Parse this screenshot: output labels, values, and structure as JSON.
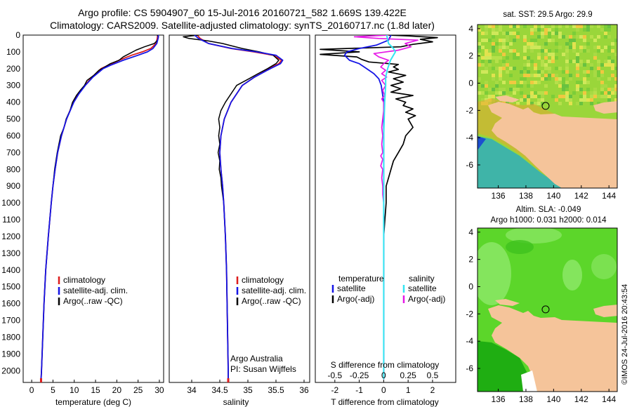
{
  "title": {
    "line1": "Argo profile: CS 5904907_60 15-Jul-2016 20160721_582 1.669S 139.422E",
    "line2": "Climatology: CARS2009. Satellite-adjusted climatology: synTS_20160717.nc (1.8d later)"
  },
  "colors": {
    "climatology": "#dd1c1c",
    "satellite": "#1515e6",
    "argo": "#000000",
    "sal_satellite": "#33e6f2",
    "sal_argo": "#e619e6",
    "land": "#f5c49a",
    "sst_main": "#9ad63a",
    "sla_main": "#5cd62a"
  },
  "depth_axis": {
    "ylim": [
      0,
      2070
    ],
    "ticks": [
      0,
      100,
      200,
      300,
      400,
      500,
      600,
      700,
      800,
      900,
      1000,
      1100,
      1200,
      1300,
      1400,
      1500,
      1600,
      1700,
      1800,
      1900,
      2000
    ]
  },
  "chart_data": [
    {
      "type": "line",
      "id": "temperature",
      "xlabel": "temperature (deg C)",
      "ylabel": "",
      "xlim": [
        -2,
        31
      ],
      "xticks": [
        0,
        5,
        10,
        15,
        20,
        25,
        30
      ],
      "legend": {
        "placement": "bottom-left",
        "entries": [
          "climatology",
          "satellite-adj. clim.",
          "Argo(..raw -QC)"
        ]
      },
      "series": [
        {
          "name": "climatology",
          "depth": [
            0,
            20,
            50,
            80,
            100,
            120,
            150,
            180,
            200,
            250,
            300,
            350,
            400,
            500,
            600,
            700,
            800,
            900,
            1000,
            1200,
            1400,
            1600,
            1800,
            2000,
            2050
          ],
          "values": [
            29.6,
            29.5,
            29.2,
            28,
            26,
            23.5,
            20.5,
            18,
            16.3,
            14.2,
            12.5,
            11,
            9.8,
            8.2,
            7,
            6.1,
            5.5,
            5,
            4.6,
            3.9,
            3.3,
            2.9,
            2.6,
            2.3,
            2.2
          ]
        },
        {
          "name": "satellite-adj. clim.",
          "depth": [
            0,
            20,
            50,
            80,
            100,
            120,
            150,
            180,
            200,
            250,
            300,
            350,
            400,
            500,
            600,
            700,
            800,
            900,
            1000,
            1200,
            1400,
            1600,
            1800,
            2000,
            2050
          ],
          "values": [
            29.8,
            29.7,
            29.4,
            28.5,
            27.2,
            25,
            21.5,
            18.5,
            16.8,
            14.4,
            12.6,
            11.1,
            9.9,
            8.2,
            7,
            6.1,
            5.5,
            5,
            4.6,
            3.9,
            3.3,
            2.9,
            2.6,
            2.3,
            2.2
          ]
        },
        {
          "name": "Argo(..raw -QC)",
          "depth": [
            0,
            10,
            30,
            50,
            70,
            90,
            110,
            130,
            150,
            170,
            190,
            210,
            240,
            270,
            300,
            330,
            360,
            400,
            450,
            500,
            550,
            600,
            650,
            700,
            800,
            900,
            1000,
            1200,
            1400,
            1600,
            1800,
            2000,
            2050
          ],
          "values": [
            29.5,
            29.8,
            29.6,
            28.8,
            26.5,
            24.5,
            23,
            21.5,
            20.5,
            18.5,
            17.2,
            15.8,
            14.6,
            13,
            12.4,
            11.4,
            10.5,
            9.6,
            9,
            8.1,
            7.6,
            6.8,
            6.4,
            6,
            5.4,
            5,
            4.6,
            3.9,
            3.3,
            2.9,
            2.6,
            2.3,
            2.2
          ]
        }
      ]
    },
    {
      "type": "line",
      "id": "salinity",
      "xlabel": "salinity",
      "ylabel": "",
      "xlim": [
        33.6,
        36.1
      ],
      "xticks": [
        34,
        34.5,
        35,
        35.5,
        36
      ],
      "xticklabels": [
        "34",
        "34.5",
        "35",
        "35.5",
        "36"
      ],
      "legend": {
        "placement": "bottom-right",
        "entries": [
          "climatology",
          "satellite-adj. clim.",
          "Argo(..raw -QC)"
        ]
      },
      "annotation": [
        "Argo Australia",
        "PI: Susan Wijffels"
      ],
      "series": [
        {
          "name": "climatology",
          "depth": [
            0,
            20,
            50,
            80,
            100,
            120,
            150,
            170,
            200,
            250,
            300,
            400,
            500,
            600,
            700,
            800,
            900,
            1000,
            1200,
            1400,
            1600,
            1800,
            2000,
            2050
          ],
          "values": [
            34.1,
            34.15,
            34.3,
            34.7,
            35.1,
            35.45,
            35.6,
            35.55,
            35.38,
            35.12,
            34.9,
            34.7,
            34.58,
            34.52,
            34.5,
            34.52,
            34.55,
            34.57,
            34.6,
            34.62,
            34.63,
            34.64,
            34.65,
            34.65
          ]
        },
        {
          "name": "satellite-adj. clim.",
          "depth": [
            0,
            20,
            50,
            80,
            100,
            120,
            150,
            170,
            200,
            250,
            300,
            400,
            500,
            600,
            700,
            800,
            900,
            1000,
            1200,
            1400,
            1600,
            1800,
            2000,
            2050
          ],
          "values": [
            34.05,
            34.12,
            34.3,
            34.72,
            35.15,
            35.5,
            35.62,
            35.58,
            35.4,
            35.12,
            34.9,
            34.7,
            34.58,
            34.52,
            34.5,
            34.52,
            34.55,
            34.57,
            34.6,
            34.62,
            34.63,
            34.64,
            34.65,
            34.65
          ]
        },
        {
          "name": "Argo(..raw -QC)",
          "depth": [
            0,
            10,
            20,
            35,
            50,
            65,
            80,
            100,
            120,
            150,
            170,
            200,
            230,
            260,
            300,
            350,
            400,
            450,
            500,
            550,
            600,
            650,
            700,
            750,
            800,
            850,
            900,
            950,
            1000,
            1200,
            1400,
            1600,
            1800,
            2000,
            2050
          ],
          "values": [
            34.12,
            33.85,
            33.95,
            34.3,
            34.55,
            34.72,
            34.9,
            35.2,
            35.45,
            35.55,
            35.5,
            35.35,
            35.18,
            35.02,
            34.8,
            34.7,
            34.6,
            34.52,
            34.48,
            34.5,
            34.48,
            34.5,
            34.47,
            34.5,
            34.49,
            34.52,
            34.53,
            34.55,
            34.57,
            34.6,
            34.62,
            34.63,
            34.64,
            34.65,
            34.65
          ]
        }
      ]
    },
    {
      "type": "line",
      "id": "differences",
      "xlabel_bottom": "T difference from climatology",
      "xlabel_top": "S difference from climatology",
      "xlim": [
        -2.8,
        2.95
      ],
      "xticks_T": [
        -2,
        -1,
        0,
        1,
        2
      ],
      "xticks_S": [
        -0.5,
        -0.25,
        0,
        0.25,
        0.5
      ],
      "xticklabels_S": [
        "-0.5",
        "-0.25",
        "0",
        "0.25",
        "0.5"
      ],
      "legend": {
        "placement": "bottom",
        "temperature_header": "temperature",
        "salinity_header": "salinity",
        "entries": [
          "satellite",
          "Argo(-adj)",
          "satellite",
          "Argo(-adj)"
        ]
      },
      "series": [
        {
          "name": "temperature satellite",
          "depth": [
            0,
            30,
            60,
            80,
            100,
            120,
            150,
            170,
            200,
            230,
            260,
            300,
            400,
            600,
            800,
            1000,
            1500,
            2000,
            2050
          ],
          "values": [
            0.3,
            0.2,
            -0.3,
            -1,
            -1.5,
            -1.6,
            -1.4,
            -1,
            -0.7,
            -0.4,
            -0.2,
            -0.1,
            0,
            0,
            0,
            0,
            0,
            0,
            0
          ]
        },
        {
          "name": "temperature Argo(-adj)",
          "depth": [
            0,
            5,
            15,
            25,
            40,
            55,
            70,
            85,
            100,
            115,
            130,
            145,
            160,
            175,
            190,
            205,
            220,
            240,
            260,
            280,
            300,
            320,
            340,
            360,
            380,
            400,
            420,
            440,
            460,
            480,
            500,
            550,
            600,
            650,
            700,
            750,
            800,
            900,
            1000,
            1100,
            1200,
            1300,
            1400,
            1500,
            1600,
            1700,
            1800,
            1900,
            2000,
            2050
          ],
          "values": [
            0.2,
            1,
            2.2,
            1.5,
            2,
            1.2,
            0.7,
            -2.6,
            -1,
            -2.6,
            -1.1,
            -0.9,
            -0.6,
            0.6,
            0.4,
            0.6,
            0.2,
            0.9,
            0.4,
            0.8,
            0.3,
            0.7,
            0.3,
            1.2,
            0.5,
            0.9,
            0.8,
            1.2,
            0.9,
            1.3,
            1,
            1.2,
            0.9,
            0.8,
            0.6,
            0.4,
            0.3,
            0.1,
            0.1,
            0.05,
            0,
            0,
            0,
            0,
            0,
            0,
            0,
            0,
            0,
            0
          ]
        },
        {
          "name": "salinity satellite",
          "depth": [
            0,
            50,
            80,
            100,
            150,
            200,
            250,
            300,
            400,
            600,
            800,
            1000,
            1500,
            2000,
            2050
          ],
          "values": [
            0.03,
            0.05,
            0.1,
            0.12,
            0.07,
            0.04,
            0.02,
            0.02,
            0.01,
            0,
            0,
            0,
            0,
            0,
            0
          ]
        },
        {
          "name": "salinity Argo(-adj)",
          "depth": [
            0,
            10,
            20,
            30,
            50,
            70,
            90,
            110,
            130,
            150,
            170,
            190,
            210,
            230,
            250,
            270,
            300,
            330,
            360,
            380,
            400,
            450,
            500,
            550,
            600,
            650,
            700,
            720,
            740,
            760,
            780,
            800,
            850,
            900,
            950,
            1000,
            1200,
            1400,
            1600,
            1800,
            2000,
            2050
          ],
          "values": [
            0.05,
            -0.3,
            -0.05,
            0.35,
            0.22,
            0.28,
            0.15,
            -0.1,
            -0.05,
            0.05,
            0,
            -0.03,
            0.02,
            -0.02,
            0.03,
            -0.02,
            0.02,
            -0.01,
            0.01,
            -0.02,
            0,
            0,
            -0.01,
            -0.02,
            -0.01,
            -0.02,
            -0.01,
            -0.03,
            -0.01,
            -0.02,
            -0.03,
            -0.01,
            -0.02,
            -0.01,
            -0.01,
            0,
            0,
            0,
            0,
            0,
            0,
            0
          ]
        }
      ]
    }
  ],
  "maps": {
    "sst": {
      "title": "sat. SST: 29.5 Argo: 29.9",
      "xticks": [
        136,
        138,
        140,
        142,
        144
      ],
      "yticks": [
        4,
        2,
        0,
        -2,
        -4,
        -6
      ],
      "xlim": [
        134.5,
        144.6
      ],
      "ylim": [
        -7.7,
        4.3
      ],
      "argo_position": {
        "lon": 139.422,
        "lat": -1.669
      }
    },
    "sla": {
      "title_line1": "Altim. SLA: -0.049",
      "title_line2": "Argo h1000: 0.031 h2000: 0.014",
      "xticks": [
        136,
        138,
        140,
        142,
        144
      ],
      "yticks": [
        4,
        2,
        0,
        -2,
        -4,
        -6
      ],
      "xlim": [
        134.5,
        144.6
      ],
      "ylim": [
        -7.7,
        4.3
      ],
      "argo_position": {
        "lon": 139.422,
        "lat": -1.669
      }
    }
  },
  "credit": "©IMOS 24-Jul-2016 20:43:54"
}
